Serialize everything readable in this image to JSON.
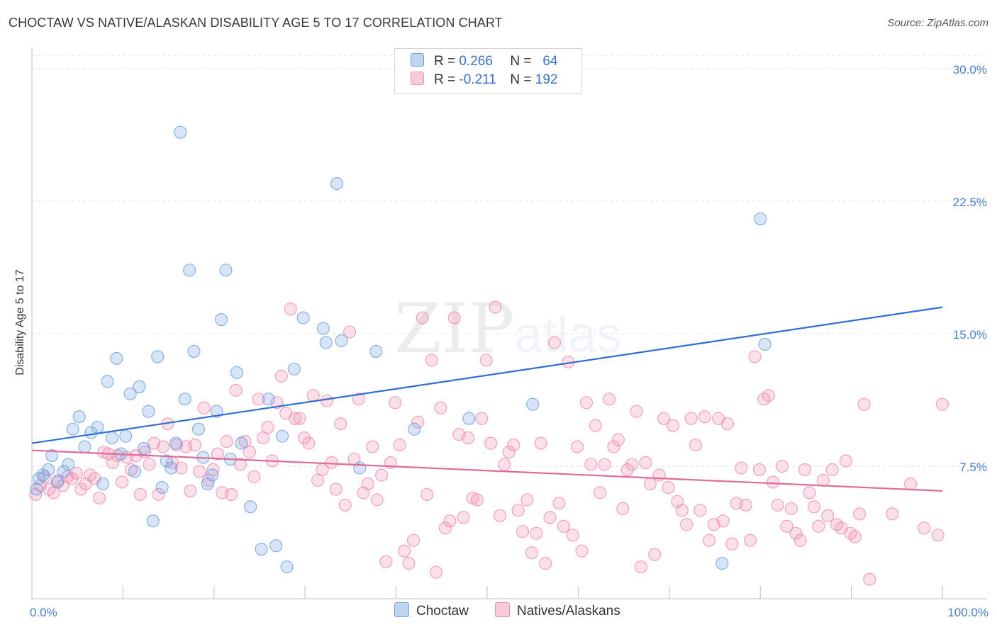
{
  "title": "CHOCTAW VS NATIVE/ALASKAN DISABILITY AGE 5 TO 17 CORRELATION CHART",
  "source": "Source: ZipAtlas.com",
  "watermark": {
    "zip": "ZIP",
    "atlas": "atlas"
  },
  "legend": {
    "rows": [
      {
        "r_label": "R =",
        "r_value": "0.266",
        "n_label": "N =",
        "n_value": "64",
        "color": "#6fa0e0"
      },
      {
        "r_label": "R =",
        "r_value": "-0.211",
        "n_label": "N =",
        "n_value": "192",
        "color": "#f08cb0"
      }
    ]
  },
  "bottom_legend": [
    {
      "label": "Choctaw",
      "color": "#6fa0e0"
    },
    {
      "label": "Natives/Alaskans",
      "color": "#f08cb0"
    }
  ],
  "chart_data": {
    "type": "scatter",
    "title": "CHOCTAW VS NATIVE/ALASKAN DISABILITY AGE 5 TO 17 CORRELATION CHART",
    "xlabel": "",
    "ylabel": "Disability Age 5 to 17",
    "xlim": [
      0,
      100
    ],
    "ylim": [
      0,
      30
    ],
    "x_tick_labels": [
      "0.0%",
      "100.0%"
    ],
    "y_ticks": [
      7.5,
      15.0,
      22.5,
      30.0
    ],
    "y_tick_labels": [
      "7.5%",
      "15.0%",
      "22.5%",
      "30.0%"
    ],
    "grid": "horizontal dashed",
    "legend_position": "top-center",
    "series": [
      {
        "name": "Choctaw",
        "color": "#6fa0e0",
        "trend": {
          "x": [
            0,
            100
          ],
          "y": [
            8.8,
            16.5
          ]
        },
        "points": [
          [
            0.5,
            6.2
          ],
          [
            0.8,
            6.8
          ],
          [
            1.2,
            7.0
          ],
          [
            1.8,
            7.3
          ],
          [
            2.2,
            8.1
          ],
          [
            2.8,
            6.6
          ],
          [
            3.5,
            7.2
          ],
          [
            4.0,
            7.6
          ],
          [
            4.5,
            9.6
          ],
          [
            5.2,
            10.3
          ],
          [
            5.8,
            8.6
          ],
          [
            6.5,
            9.4
          ],
          [
            7.2,
            9.7
          ],
          [
            7.8,
            6.5
          ],
          [
            8.3,
            12.3
          ],
          [
            8.8,
            9.1
          ],
          [
            9.3,
            13.6
          ],
          [
            9.8,
            8.2
          ],
          [
            10.3,
            9.2
          ],
          [
            10.8,
            11.6
          ],
          [
            11.3,
            7.2
          ],
          [
            11.8,
            12.0
          ],
          [
            12.3,
            8.5
          ],
          [
            12.8,
            10.6
          ],
          [
            13.3,
            4.4
          ],
          [
            13.8,
            13.7
          ],
          [
            14.3,
            6.3
          ],
          [
            14.8,
            7.8
          ],
          [
            15.3,
            7.4
          ],
          [
            15.8,
            8.8
          ],
          [
            16.3,
            26.4
          ],
          [
            16.8,
            11.3
          ],
          [
            17.3,
            18.6
          ],
          [
            17.8,
            14.0
          ],
          [
            18.3,
            9.6
          ],
          [
            18.8,
            8.0
          ],
          [
            19.3,
            6.5
          ],
          [
            19.8,
            7.0
          ],
          [
            20.3,
            10.6
          ],
          [
            20.8,
            15.8
          ],
          [
            21.3,
            18.6
          ],
          [
            21.8,
            7.9
          ],
          [
            22.5,
            12.8
          ],
          [
            23.0,
            8.8
          ],
          [
            24.0,
            5.2
          ],
          [
            25.2,
            2.8
          ],
          [
            26.0,
            11.3
          ],
          [
            26.8,
            3.0
          ],
          [
            27.5,
            9.2
          ],
          [
            28.0,
            1.8
          ],
          [
            28.8,
            13.0
          ],
          [
            29.8,
            15.9
          ],
          [
            32.0,
            15.3
          ],
          [
            32.3,
            14.5
          ],
          [
            33.5,
            23.5
          ],
          [
            34.0,
            14.6
          ],
          [
            36.0,
            7.4
          ],
          [
            37.8,
            14.0
          ],
          [
            42.0,
            9.6
          ],
          [
            48.0,
            10.2
          ],
          [
            55.0,
            11.0
          ],
          [
            75.8,
            2.0
          ],
          [
            80.0,
            21.5
          ],
          [
            80.5,
            14.4
          ]
        ]
      },
      {
        "name": "Natives/Alaskans",
        "color": "#f08cb0",
        "trend": {
          "x": [
            0,
            100
          ],
          "y": [
            8.4,
            6.1
          ]
        },
        "points": [
          [
            0.4,
            5.9
          ],
          [
            0.9,
            6.4
          ],
          [
            1.4,
            6.9
          ],
          [
            1.9,
            6.2
          ],
          [
            2.4,
            6.0
          ],
          [
            2.9,
            6.7
          ],
          [
            3.4,
            6.4
          ],
          [
            3.9,
            6.9
          ],
          [
            4.4,
            6.8
          ],
          [
            4.9,
            7.1
          ],
          [
            5.4,
            6.2
          ],
          [
            5.9,
            6.5
          ],
          [
            6.4,
            7.0
          ],
          [
            6.9,
            6.8
          ],
          [
            7.4,
            5.7
          ],
          [
            7.9,
            8.3
          ],
          [
            8.4,
            8.2
          ],
          [
            8.9,
            7.7
          ],
          [
            9.4,
            8.1
          ],
          [
            9.9,
            6.6
          ],
          [
            10.4,
            8.0
          ],
          [
            10.9,
            7.3
          ],
          [
            11.4,
            8.1
          ],
          [
            11.9,
            5.9
          ],
          [
            12.4,
            8.3
          ],
          [
            12.9,
            7.6
          ],
          [
            13.4,
            8.8
          ],
          [
            13.9,
            5.9
          ],
          [
            14.4,
            8.6
          ],
          [
            14.9,
            9.9
          ],
          [
            15.4,
            7.7
          ],
          [
            15.9,
            8.7
          ],
          [
            16.4,
            7.4
          ],
          [
            16.9,
            8.6
          ],
          [
            17.4,
            6.1
          ],
          [
            17.9,
            8.7
          ],
          [
            18.4,
            7.2
          ],
          [
            18.9,
            10.8
          ],
          [
            19.4,
            6.7
          ],
          [
            19.9,
            7.3
          ],
          [
            20.4,
            8.2
          ],
          [
            20.9,
            6.0
          ],
          [
            21.4,
            8.9
          ],
          [
            21.9,
            5.9
          ],
          [
            22.4,
            11.8
          ],
          [
            22.9,
            7.6
          ],
          [
            23.4,
            8.9
          ],
          [
            23.9,
            8.3
          ],
          [
            24.4,
            6.9
          ],
          [
            24.9,
            11.3
          ],
          [
            25.4,
            9.1
          ],
          [
            25.9,
            9.7
          ],
          [
            26.4,
            7.8
          ],
          [
            26.9,
            11.1
          ],
          [
            27.4,
            12.6
          ],
          [
            27.9,
            10.5
          ],
          [
            28.4,
            16.4
          ],
          [
            28.9,
            10.2
          ],
          [
            29.4,
            10.2
          ],
          [
            29.9,
            9.1
          ],
          [
            30.4,
            8.8
          ],
          [
            30.9,
            11.5
          ],
          [
            31.4,
            6.7
          ],
          [
            31.9,
            7.3
          ],
          [
            32.4,
            11.2
          ],
          [
            32.9,
            7.7
          ],
          [
            33.4,
            6.2
          ],
          [
            33.9,
            9.9
          ],
          [
            34.4,
            5.3
          ],
          [
            34.9,
            15.1
          ],
          [
            35.4,
            7.9
          ],
          [
            35.9,
            11.3
          ],
          [
            36.4,
            6.0
          ],
          [
            36.9,
            6.5
          ],
          [
            37.4,
            8.6
          ],
          [
            37.9,
            5.6
          ],
          [
            38.4,
            7.0
          ],
          [
            38.9,
            2.1
          ],
          [
            39.4,
            7.7
          ],
          [
            39.9,
            11.1
          ],
          [
            40.4,
            8.7
          ],
          [
            40.9,
            2.7
          ],
          [
            41.4,
            2.0
          ],
          [
            41.9,
            3.3
          ],
          [
            42.4,
            10.0
          ],
          [
            42.9,
            15.9
          ],
          [
            43.4,
            5.9
          ],
          [
            43.9,
            13.5
          ],
          [
            44.4,
            1.5
          ],
          [
            44.9,
            10.8
          ],
          [
            45.4,
            4.0
          ],
          [
            45.9,
            4.4
          ],
          [
            46.4,
            15.9
          ],
          [
            46.9,
            9.3
          ],
          [
            47.4,
            4.6
          ],
          [
            47.9,
            9.1
          ],
          [
            48.4,
            5.7
          ],
          [
            48.9,
            5.6
          ],
          [
            49.4,
            10.2
          ],
          [
            49.9,
            13.5
          ],
          [
            50.4,
            8.8
          ],
          [
            50.9,
            16.5
          ],
          [
            51.4,
            4.7
          ],
          [
            51.9,
            7.6
          ],
          [
            52.4,
            8.3
          ],
          [
            52.9,
            8.7
          ],
          [
            53.4,
            5.0
          ],
          [
            53.9,
            3.8
          ],
          [
            54.4,
            5.6
          ],
          [
            54.9,
            2.6
          ],
          [
            55.4,
            3.7
          ],
          [
            55.9,
            8.8
          ],
          [
            56.4,
            2.0
          ],
          [
            56.9,
            4.6
          ],
          [
            57.4,
            14.5
          ],
          [
            57.9,
            5.4
          ],
          [
            58.4,
            4.1
          ],
          [
            58.9,
            13.4
          ],
          [
            59.4,
            3.6
          ],
          [
            59.9,
            8.6
          ],
          [
            60.4,
            2.7
          ],
          [
            60.9,
            11.1
          ],
          [
            61.4,
            7.6
          ],
          [
            61.9,
            9.8
          ],
          [
            62.4,
            6.0
          ],
          [
            62.9,
            7.6
          ],
          [
            63.4,
            11.3
          ],
          [
            63.9,
            8.6
          ],
          [
            64.4,
            9.0
          ],
          [
            64.9,
            5.1
          ],
          [
            65.4,
            7.3
          ],
          [
            65.9,
            7.6
          ],
          [
            66.4,
            10.6
          ],
          [
            66.9,
            1.8
          ],
          [
            67.4,
            7.7
          ],
          [
            67.9,
            6.5
          ],
          [
            68.4,
            2.5
          ],
          [
            68.9,
            7.0
          ],
          [
            69.4,
            10.2
          ],
          [
            69.9,
            6.3
          ],
          [
            70.4,
            9.8
          ],
          [
            70.9,
            5.5
          ],
          [
            71.4,
            5.0
          ],
          [
            71.9,
            4.2
          ],
          [
            72.4,
            10.2
          ],
          [
            72.9,
            8.7
          ],
          [
            73.4,
            5.0
          ],
          [
            73.9,
            10.3
          ],
          [
            74.4,
            3.3
          ],
          [
            74.9,
            4.2
          ],
          [
            75.4,
            10.2
          ],
          [
            75.9,
            4.4
          ],
          [
            76.4,
            9.9
          ],
          [
            76.9,
            3.1
          ],
          [
            77.4,
            5.4
          ],
          [
            77.9,
            7.4
          ],
          [
            78.4,
            5.3
          ],
          [
            78.9,
            3.3
          ],
          [
            79.4,
            13.7
          ],
          [
            79.9,
            7.3
          ],
          [
            80.4,
            11.3
          ],
          [
            80.9,
            11.5
          ],
          [
            81.4,
            6.6
          ],
          [
            81.9,
            5.3
          ],
          [
            82.4,
            7.5
          ],
          [
            82.9,
            4.1
          ],
          [
            83.4,
            5.1
          ],
          [
            83.9,
            3.7
          ],
          [
            84.4,
            3.3
          ],
          [
            84.9,
            7.3
          ],
          [
            85.4,
            6.0
          ],
          [
            85.9,
            5.2
          ],
          [
            86.4,
            4.1
          ],
          [
            86.9,
            6.7
          ],
          [
            87.4,
            4.7
          ],
          [
            87.9,
            7.3
          ],
          [
            88.4,
            4.2
          ],
          [
            88.9,
            4.0
          ],
          [
            89.4,
            7.8
          ],
          [
            89.9,
            3.7
          ],
          [
            90.4,
            3.5
          ],
          [
            90.9,
            4.8
          ],
          [
            91.4,
            11.0
          ],
          [
            92.0,
            1.1
          ],
          [
            94.5,
            4.8
          ],
          [
            96.5,
            6.5
          ],
          [
            98.0,
            4.0
          ],
          [
            99.5,
            3.6
          ],
          [
            100.0,
            11.0
          ]
        ]
      }
    ]
  }
}
